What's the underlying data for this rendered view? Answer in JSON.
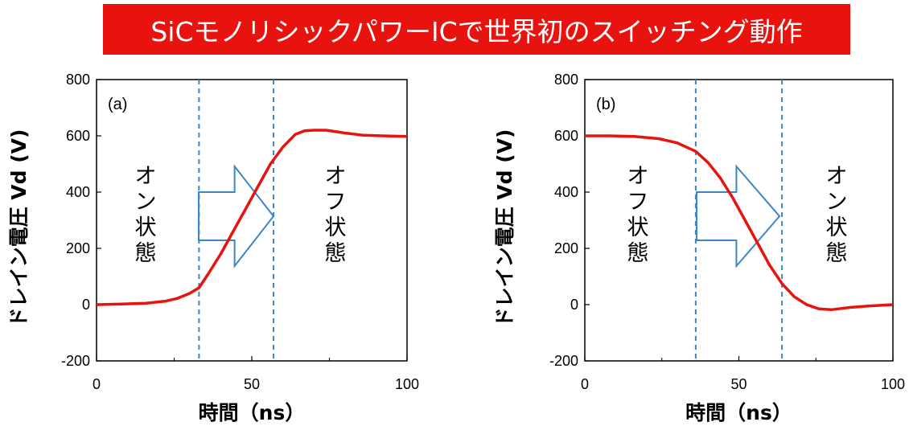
{
  "title": "SiCモノリシックパワーICで世界初のスイッチング動作",
  "colors": {
    "banner": "#e8130f",
    "curve": "#e8130f",
    "dashed": "#3a86c8",
    "arrow": "#3a86c8"
  },
  "chart_data": [
    {
      "type": "line",
      "panel_label": "(a)",
      "xlabel": "時間（ns）",
      "ylabel": "ドレイン電圧 Vd (V)",
      "xlim": [
        0,
        100
      ],
      "ylim": [
        -200,
        800
      ],
      "x_ticks": [
        "0",
        "50",
        "100"
      ],
      "y_ticks": [
        "-200",
        "0",
        "200",
        "400",
        "600",
        "800"
      ],
      "grid": false,
      "series": [
        {
          "x": [
            0,
            8,
            16,
            22,
            26,
            30,
            33,
            36,
            40,
            44,
            48,
            52,
            56,
            60,
            64,
            67,
            70,
            74,
            80,
            86,
            92,
            100
          ],
          "y": [
            0,
            2,
            5,
            12,
            22,
            40,
            60,
            110,
            180,
            260,
            340,
            420,
            500,
            560,
            605,
            618,
            620,
            620,
            610,
            602,
            600,
            598
          ]
        }
      ],
      "vlines": [
        33,
        57
      ],
      "regions": [
        "オン状態",
        "オフ状態"
      ],
      "arrow_direction": "right"
    },
    {
      "type": "line",
      "panel_label": "(b)",
      "xlabel": "時間（ns）",
      "ylabel": "ドレイン電圧 Vd (V)",
      "xlim": [
        0,
        100
      ],
      "ylim": [
        -200,
        800
      ],
      "x_ticks": [
        "0",
        "50",
        "100"
      ],
      "y_ticks": [
        "-200",
        "0",
        "200",
        "400",
        "600",
        "800"
      ],
      "grid": false,
      "series": [
        {
          "x": [
            0,
            8,
            16,
            24,
            30,
            36,
            40,
            44,
            48,
            52,
            56,
            60,
            64,
            68,
            72,
            76,
            80,
            86,
            92,
            100
          ],
          "y": [
            600,
            600,
            598,
            590,
            575,
            545,
            505,
            450,
            380,
            300,
            220,
            140,
            75,
            28,
            0,
            -15,
            -18,
            -10,
            -5,
            0
          ]
        }
      ],
      "vlines": [
        36,
        64
      ],
      "regions": [
        "オフ状態",
        "オン状態"
      ],
      "arrow_direction": "right"
    }
  ]
}
